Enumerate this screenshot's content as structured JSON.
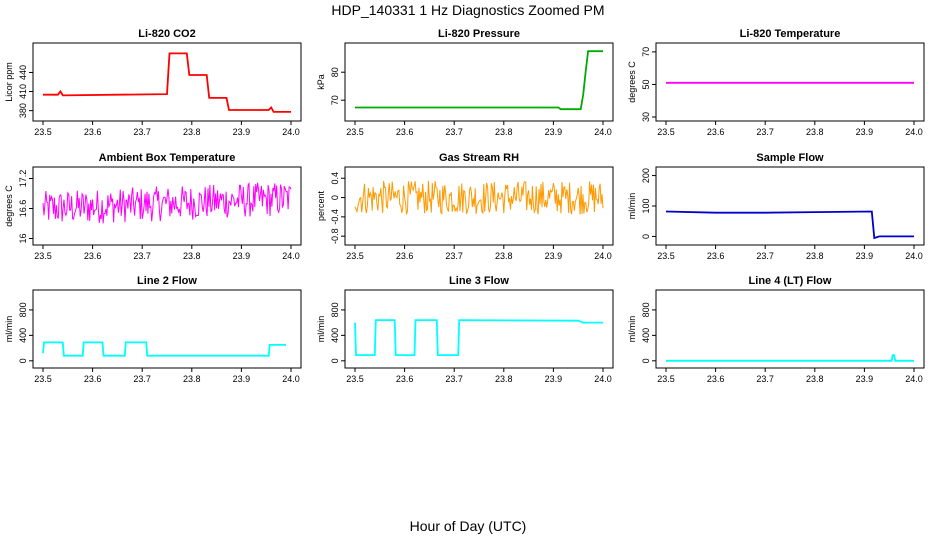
{
  "figure": {
    "title": "HDP_140331  1 Hz Diagnostics Zoomed PM",
    "xlabel": "Hour of Day (UTC)"
  },
  "chart_data": [
    {
      "type": "line",
      "title": "Li-820 CO2",
      "ylabel": "Licor ppm",
      "color": "#ff0000",
      "xlim": [
        23.5,
        24.0
      ],
      "ylim": [
        370,
        480
      ],
      "xticks": [
        "23.5",
        "23.6",
        "23.7",
        "23.8",
        "23.9",
        "24.0"
      ],
      "yticks": [
        380,
        410,
        440
      ],
      "series": [
        {
          "x": [
            23.5,
            23.53,
            23.535,
            23.54,
            23.75,
            23.755,
            23.79,
            23.795,
            23.83,
            23.835,
            23.87,
            23.875,
            23.955,
            23.96,
            23.965,
            24.0
          ],
          "y": [
            405,
            405,
            410,
            404,
            406,
            470,
            470,
            436,
            436,
            400,
            400,
            381,
            381,
            385,
            378,
            378
          ]
        }
      ]
    },
    {
      "type": "line",
      "title": "Li-820 Pressure",
      "ylabel": "kPa",
      "color": "#00aa00",
      "xlim": [
        23.5,
        24.0
      ],
      "ylim": [
        64,
        89
      ],
      "xticks": [
        "23.5",
        "23.6",
        "23.7",
        "23.8",
        "23.9",
        "24.0"
      ],
      "yticks": [
        70,
        80
      ],
      "series": [
        {
          "x": [
            23.5,
            23.91,
            23.915,
            23.955,
            23.96,
            23.965,
            23.97,
            24.0
          ],
          "y": [
            67.4,
            67.4,
            66.8,
            66.8,
            72,
            80,
            87.5,
            87.5
          ]
        }
      ]
    },
    {
      "type": "line",
      "title": "Li-820 Temperature",
      "ylabel": "degrees C",
      "color": "#ff00ff",
      "xlim": [
        23.5,
        24.0
      ],
      "ylim": [
        30,
        73
      ],
      "xticks": [
        "23.5",
        "23.6",
        "23.7",
        "23.8",
        "23.9",
        "24.0"
      ],
      "yticks": [
        30,
        50,
        70
      ],
      "series": [
        {
          "x": [
            23.5,
            24.0
          ],
          "y": [
            51,
            51
          ]
        }
      ]
    },
    {
      "type": "line",
      "title": "Ambient Box Temperature",
      "ylabel": "degrees C",
      "color": "#ff00ff",
      "xlim": [
        23.5,
        24.0
      ],
      "ylim": [
        15.95,
        17.35
      ],
      "xticks": [
        "23.5",
        "23.6",
        "23.7",
        "23.8",
        "23.9",
        "24.0"
      ],
      "yticks": [
        16.0,
        16.6,
        17.2
      ],
      "noise": {
        "center": 16.7,
        "amplitude": 0.35
      },
      "series": [
        {
          "x": [
            23.5,
            24.0
          ],
          "y": [
            16.6,
            16.8
          ]
        }
      ]
    },
    {
      "type": "line",
      "title": "Gas Stream RH",
      "ylabel": "percent",
      "color": "#ff9900",
      "xlim": [
        23.5,
        24.0
      ],
      "ylim": [
        -0.9,
        0.55
      ],
      "xticks": [
        "23.5",
        "23.6",
        "23.7",
        "23.8",
        "23.9",
        "24.0"
      ],
      "yticks": [
        -0.8,
        -0.4,
        0.0,
        0.4
      ],
      "noise": {
        "center": 0.0,
        "amplitude": 0.35
      },
      "series": [
        {
          "x": [
            23.5,
            24.0
          ],
          "y": [
            0.0,
            0.0
          ]
        }
      ]
    },
    {
      "type": "line",
      "title": "Sample Flow",
      "ylabel": "ml/min",
      "color": "#0000cc",
      "xlim": [
        23.5,
        24.0
      ],
      "ylim": [
        -15,
        215
      ],
      "xticks": [
        "23.5",
        "23.6",
        "23.7",
        "23.8",
        "23.9",
        "24.0"
      ],
      "yticks": [
        0,
        100,
        200
      ],
      "series": [
        {
          "x": [
            23.5,
            23.6,
            23.7,
            23.8,
            23.915,
            23.92,
            23.93,
            24.0
          ],
          "y": [
            82,
            78,
            78,
            80,
            82,
            -5,
            0,
            0
          ]
        }
      ]
    },
    {
      "type": "line",
      "title": "Line 2 Flow",
      "ylabel": "ml/min",
      "color": "#00ffff",
      "xlim": [
        23.5,
        24.0
      ],
      "ylim": [
        -50,
        1050
      ],
      "xticks": [
        "23.5",
        "23.6",
        "23.7",
        "23.8",
        "23.9",
        "24.0"
      ],
      "yticks": [
        0,
        400,
        800
      ],
      "series": [
        {
          "x": [
            23.5,
            23.502,
            23.54,
            23.542,
            23.58,
            23.582,
            23.62,
            23.622,
            23.665,
            23.667,
            23.708,
            23.71,
            23.955,
            23.957,
            23.99
          ],
          "y": [
            120,
            290,
            290,
            80,
            80,
            290,
            290,
            80,
            80,
            290,
            290,
            80,
            80,
            250,
            250
          ]
        }
      ]
    },
    {
      "type": "line",
      "title": "Line 3 Flow",
      "ylabel": "ml/min",
      "color": "#00ffff",
      "xlim": [
        23.5,
        24.0
      ],
      "ylim": [
        -50,
        1050
      ],
      "xticks": [
        "23.5",
        "23.6",
        "23.7",
        "23.8",
        "23.9",
        "24.0"
      ],
      "yticks": [
        0,
        400,
        800
      ],
      "series": [
        {
          "x": [
            23.5,
            23.502,
            23.54,
            23.542,
            23.58,
            23.582,
            23.62,
            23.622,
            23.665,
            23.667,
            23.708,
            23.71,
            23.95,
            23.96,
            24.0
          ],
          "y": [
            600,
            90,
            90,
            640,
            640,
            90,
            90,
            640,
            640,
            90,
            90,
            640,
            630,
            600,
            600
          ]
        }
      ]
    },
    {
      "type": "line",
      "title": "Line 4 (LT) Flow",
      "ylabel": "ml/min",
      "color": "#00ffff",
      "xlim": [
        23.5,
        24.0
      ],
      "ylim": [
        -50,
        1050
      ],
      "xticks": [
        "23.5",
        "23.6",
        "23.7",
        "23.8",
        "23.9",
        "24.0"
      ],
      "yticks": [
        0,
        400,
        800
      ],
      "series": [
        {
          "x": [
            23.5,
            23.955,
            23.957,
            23.96,
            23.962,
            24.0
          ],
          "y": [
            0,
            0,
            90,
            90,
            0,
            0
          ]
        }
      ]
    }
  ]
}
